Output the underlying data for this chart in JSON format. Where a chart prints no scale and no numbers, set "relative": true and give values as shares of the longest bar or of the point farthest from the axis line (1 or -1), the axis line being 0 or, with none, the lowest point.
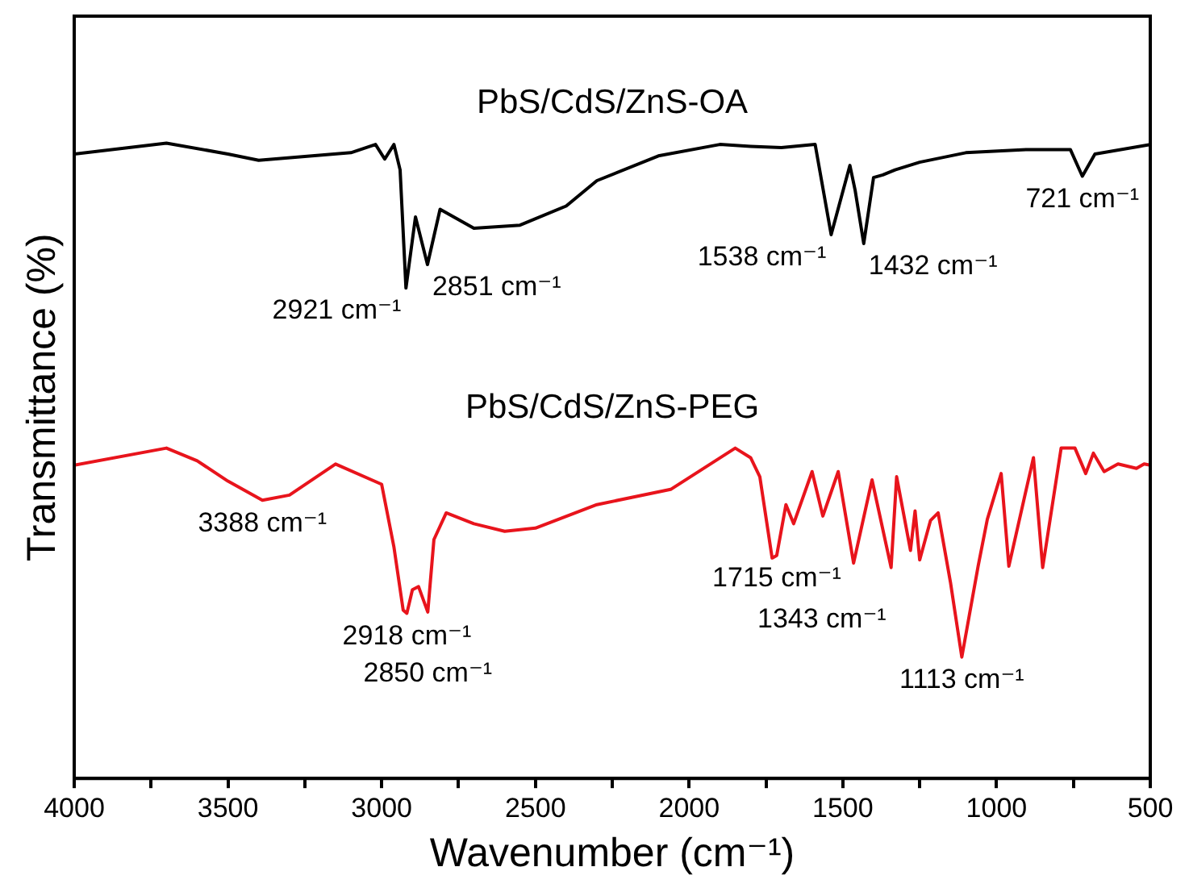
{
  "chart_data": {
    "type": "line",
    "xlabel": "Wavenumber (cm⁻¹)",
    "ylabel": "Transmittance (%)",
    "relative": true,
    "xlim": [
      4000,
      500
    ],
    "xticks": [
      4000,
      {
        "value": 3750,
        "label": null
      },
      3500,
      {
        "value": 3250,
        "label": null
      },
      3000,
      {
        "value": 2750,
        "label": null
      },
      2500,
      {
        "value": 2250,
        "label": null
      },
      2000,
      {
        "value": 1750,
        "label": null
      },
      1500,
      {
        "value": 1250,
        "label": null
      },
      1000,
      {
        "value": 750,
        "label": null
      },
      500
    ],
    "grid": false,
    "legend": false,
    "marker": "none",
    "line_style": "solid",
    "series": [
      {
        "name": "PbS/CdS/ZnS-OA",
        "color": "#000000",
        "x": [
          4000,
          3700,
          3500,
          3400,
          3100,
          3020,
          2990,
          2960,
          2940,
          2921,
          2890,
          2851,
          2810,
          2700,
          2550,
          2400,
          2300,
          2100,
          1900,
          1800,
          1700,
          1590,
          1538,
          1477,
          1460,
          1432,
          1400,
          1370,
          1330,
          1250,
          1100,
          900,
          760,
          721,
          680,
          500
        ],
        "values": [
          0.983,
          1.0,
          0.983,
          0.973,
          0.985,
          0.998,
          0.975,
          0.998,
          0.958,
          0.772,
          0.884,
          0.809,
          0.896,
          0.866,
          0.871,
          0.901,
          0.941,
          0.98,
          0.998,
          0.995,
          0.993,
          0.998,
          0.856,
          0.965,
          0.926,
          0.842,
          0.946,
          0.95,
          0.958,
          0.97,
          0.985,
          0.99,
          0.99,
          0.948,
          0.983,
          0.998
        ]
      },
      {
        "name": "PbS/CdS/ZnS-PEG",
        "color": "#e8141c",
        "x": [
          4000,
          3700,
          3600,
          3500,
          3388,
          3300,
          3150,
          3000,
          2960,
          2930,
          2918,
          2900,
          2880,
          2850,
          2830,
          2790,
          2700,
          2600,
          2500,
          2300,
          2060,
          1850,
          1800,
          1770,
          1730,
          1715,
          1685,
          1660,
          1600,
          1565,
          1515,
          1465,
          1405,
          1343,
          1325,
          1280,
          1265,
          1250,
          1215,
          1190,
          1150,
          1113,
          1060,
          1030,
          985,
          960,
          880,
          850,
          790,
          745,
          710,
          685,
          650,
          605,
          545,
          520,
          500
        ],
        "values": [
          0.493,
          0.52,
          0.5,
          0.468,
          0.438,
          0.446,
          0.495,
          0.463,
          0.364,
          0.265,
          0.26,
          0.297,
          0.302,
          0.262,
          0.376,
          0.418,
          0.401,
          0.389,
          0.394,
          0.431,
          0.455,
          0.52,
          0.505,
          0.475,
          0.347,
          0.351,
          0.431,
          0.401,
          0.483,
          0.413,
          0.483,
          0.339,
          0.47,
          0.332,
          0.475,
          0.359,
          0.421,
          0.344,
          0.406,
          0.418,
          0.309,
          0.191,
          0.334,
          0.408,
          0.48,
          0.334,
          0.505,
          0.332,
          0.52,
          0.52,
          0.48,
          0.512,
          0.483,
          0.495,
          0.488,
          0.495,
          0.493
        ]
      }
    ],
    "annotations": [
      {
        "text": "2851 cm⁻¹",
        "x": 2851,
        "y": 0.809
      },
      {
        "text": "2921 cm⁻¹",
        "x": 2921,
        "y": 0.772
      },
      {
        "text": "1538 cm⁻¹",
        "x": 1538,
        "y": 0.856
      },
      {
        "text": "1432 cm⁻¹",
        "x": 1432,
        "y": 0.842
      },
      {
        "text": "721 cm⁻¹",
        "x": 721,
        "y": 0.948
      },
      {
        "text": "3388 cm⁻¹",
        "x": 3388,
        "y": 0.438
      },
      {
        "text": "2918 cm⁻¹",
        "x": 2918,
        "y": 0.26
      },
      {
        "text": "2850 cm⁻¹",
        "x": 2850,
        "y": 0.262
      },
      {
        "text": "1715 cm⁻¹",
        "x": 1715,
        "y": 0.351
      },
      {
        "text": "1343 cm⁻¹",
        "x": 1343,
        "y": 0.332
      },
      {
        "text": "1113 cm⁻¹",
        "x": 1113,
        "y": 0.191
      }
    ]
  }
}
